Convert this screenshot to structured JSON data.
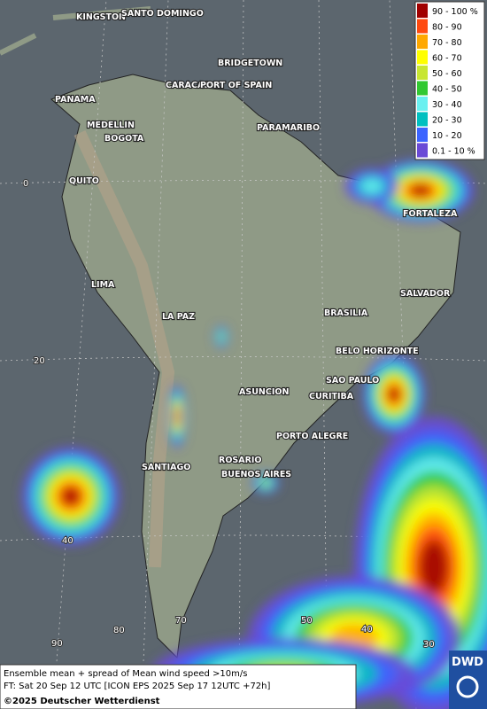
{
  "cities": [
    "KINGSTON",
    "SANTO DOMINGO",
    "BRIDGETOWN",
    "CARACAS",
    "PORT OF SPAIN",
    "PANAMA",
    "MEDELLIN",
    "BOGOTA",
    "PARAMARIBO",
    "QUITO",
    "FORTALEZA",
    "LIMA",
    "SALVADOR",
    "BRASILIA",
    "LA PAZ",
    "BELO HORIZONTE",
    "SAO PAULO",
    "ASUNCION",
    "CURITIBA",
    "PORTO ALEGRE",
    "SANTIAGO",
    "ROSARIO",
    "BUENOS AIRES"
  ],
  "graticule_labels": [
    "0",
    "20",
    "40",
    "90",
    "80",
    "70",
    "50",
    "40",
    "30"
  ],
  "legend": [
    {
      "label": "90 - 100 %",
      "color": "#a00000"
    },
    {
      "label": "80 - 90",
      "color": "#ff4a10"
    },
    {
      "label": "70 - 80",
      "color": "#ffa800"
    },
    {
      "label": "60 - 70",
      "color": "#ffff00"
    },
    {
      "label": "50 - 60",
      "color": "#c8e632"
    },
    {
      "label": "40 - 50",
      "color": "#32c832"
    },
    {
      "label": "30 - 40",
      "color": "#6af0f0"
    },
    {
      "label": "20 - 30",
      "color": "#00c0c0"
    },
    {
      "label": "10 - 20",
      "color": "#3c64ff"
    },
    {
      "label": "0.1 - 10 %",
      "color": "#6a4ad6"
    }
  ],
  "footer": {
    "line1": "Ensemble mean + spread of Mean wind speed >10m/s",
    "line2": "FT: Sat 20 Sep 12 UTC [ICON EPS 2025 Sep 17 12UTC +72h]",
    "line3": "©2025 Deutscher Wetterdienst"
  },
  "logo": "DWD"
}
